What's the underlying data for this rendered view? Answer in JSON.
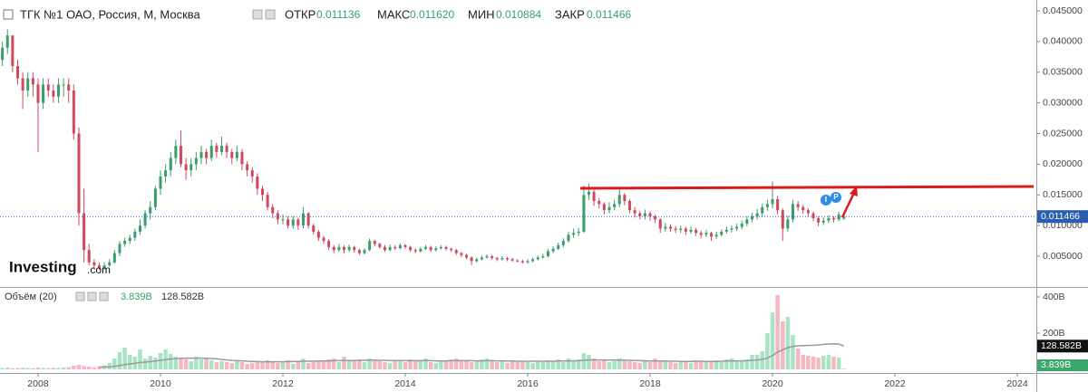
{
  "chart_data": {
    "type": "candlestick",
    "title": "ТГК №1 ОАО, Россия, М, Москва",
    "header": {
      "open": "ОТКР",
      "high": "МАКС",
      "low": "МИН",
      "close": "ЗАКР"
    },
    "header_values": {
      "open": "0.011136",
      "high": "0.011620",
      "low": "0.010884",
      "close": "0.011466"
    },
    "logo": "Investing",
    "logo_suffix": ".com",
    "event_markers": [
      "I",
      "P"
    ],
    "up_color": "#3a9e6b",
    "down_color": "#d2485f",
    "x": [
      2007.417,
      2007.5,
      2007.583,
      2007.667,
      2007.75,
      2007.833,
      2007.917,
      2008,
      2008.083,
      2008.167,
      2008.25,
      2008.333,
      2008.417,
      2008.5,
      2008.583,
      2008.667,
      2008.75,
      2008.833,
      2008.917,
      2009,
      2009.083,
      2009.167,
      2009.25,
      2009.333,
      2009.417,
      2009.5,
      2009.583,
      2009.667,
      2009.75,
      2009.833,
      2009.917,
      2010,
      2010.083,
      2010.167,
      2010.25,
      2010.333,
      2010.417,
      2010.5,
      2010.583,
      2010.667,
      2010.75,
      2010.833,
      2010.917,
      2011,
      2011.083,
      2011.167,
      2011.25,
      2011.333,
      2011.417,
      2011.5,
      2011.583,
      2011.667,
      2011.75,
      2011.833,
      2011.917,
      2012,
      2012.083,
      2012.167,
      2012.25,
      2012.333,
      2012.417,
      2012.5,
      2012.583,
      2012.667,
      2012.75,
      2012.833,
      2012.917,
      2013,
      2013.083,
      2013.167,
      2013.25,
      2013.333,
      2013.417,
      2013.5,
      2013.583,
      2013.667,
      2013.75,
      2013.833,
      2013.917,
      2014,
      2014.083,
      2014.167,
      2014.25,
      2014.333,
      2014.417,
      2014.5,
      2014.583,
      2014.667,
      2014.75,
      2014.833,
      2014.917,
      2015,
      2015.083,
      2015.167,
      2015.25,
      2015.333,
      2015.417,
      2015.5,
      2015.583,
      2015.667,
      2015.75,
      2015.833,
      2015.917,
      2016,
      2016.083,
      2016.167,
      2016.25,
      2016.333,
      2016.417,
      2016.5,
      2016.583,
      2016.667,
      2016.75,
      2016.833,
      2016.917,
      2017,
      2017.083,
      2017.167,
      2017.25,
      2017.333,
      2017.417,
      2017.5,
      2017.583,
      2017.667,
      2017.75,
      2017.833,
      2017.917,
      2018,
      2018.083,
      2018.167,
      2018.25,
      2018.333,
      2018.417,
      2018.5,
      2018.583,
      2018.667,
      2018.75,
      2018.833,
      2018.917,
      2019,
      2019.083,
      2019.167,
      2019.25,
      2019.333,
      2019.417,
      2019.5,
      2019.583,
      2019.667,
      2019.75,
      2019.833,
      2019.917,
      2020,
      2020.083,
      2020.167,
      2020.25,
      2020.333,
      2020.417,
      2020.5,
      2020.583,
      2020.667,
      2020.75,
      2020.833,
      2020.917,
      2021,
      2021.083,
      2021.167
    ],
    "open": [
      0.037,
      0.039,
      0.041,
      0.036,
      0.034,
      0.032,
      0.034,
      0.033,
      0.03,
      0.033,
      0.032,
      0.031,
      0.033,
      0.033,
      0.032,
      0.025,
      0.012,
      0.006,
      0.004,
      0.0035,
      0.003,
      0.0035,
      0.004,
      0.0055,
      0.007,
      0.0075,
      0.008,
      0.009,
      0.01,
      0.012,
      0.013,
      0.016,
      0.018,
      0.019,
      0.021,
      0.023,
      0.02,
      0.019,
      0.02,
      0.021,
      0.022,
      0.021,
      0.023,
      0.022,
      0.023,
      0.022,
      0.021,
      0.022,
      0.02,
      0.019,
      0.018,
      0.016,
      0.015,
      0.013,
      0.012,
      0.011,
      0.011,
      0.01,
      0.011,
      0.01,
      0.012,
      0.01,
      0.009,
      0.008,
      0.0075,
      0.0065,
      0.006,
      0.0065,
      0.006,
      0.0065,
      0.006,
      0.0055,
      0.006,
      0.0075,
      0.007,
      0.0065,
      0.006,
      0.0065,
      0.0063,
      0.0068,
      0.0065,
      0.006,
      0.0058,
      0.0062,
      0.0065,
      0.006,
      0.0063,
      0.0065,
      0.0062,
      0.006,
      0.0055,
      0.0052,
      0.0048,
      0.0042,
      0.0045,
      0.0048,
      0.005,
      0.0047,
      0.0045,
      0.0047,
      0.0045,
      0.0043,
      0.0042,
      0.004,
      0.0042,
      0.0045,
      0.0048,
      0.005,
      0.0058,
      0.0062,
      0.0068,
      0.0075,
      0.0085,
      0.0088,
      0.009,
      0.015,
      0.0155,
      0.014,
      0.0135,
      0.0125,
      0.013,
      0.0135,
      0.015,
      0.014,
      0.0125,
      0.012,
      0.0115,
      0.012,
      0.0115,
      0.011,
      0.0095,
      0.0098,
      0.0095,
      0.0093,
      0.0095,
      0.009,
      0.0093,
      0.0088,
      0.0085,
      0.0088,
      0.0082,
      0.0085,
      0.009,
      0.0093,
      0.0095,
      0.0098,
      0.0103,
      0.011,
      0.0115,
      0.012,
      0.013,
      0.0135,
      0.0143,
      0.0125,
      0.0095,
      0.011,
      0.0135,
      0.013,
      0.0125,
      0.012,
      0.0112,
      0.0105,
      0.0108,
      0.0112,
      0.011,
      0.011136
    ],
    "high": [
      0.04,
      0.042,
      0.041,
      0.037,
      0.035,
      0.035,
      0.035,
      0.034,
      0.034,
      0.034,
      0.033,
      0.034,
      0.034,
      0.034,
      0.033,
      0.026,
      0.016,
      0.007,
      0.0045,
      0.004,
      0.004,
      0.0045,
      0.006,
      0.0075,
      0.008,
      0.0085,
      0.0095,
      0.011,
      0.0125,
      0.014,
      0.0165,
      0.019,
      0.02,
      0.022,
      0.024,
      0.0255,
      0.021,
      0.021,
      0.022,
      0.023,
      0.0225,
      0.024,
      0.0235,
      0.0245,
      0.0235,
      0.0225,
      0.023,
      0.0225,
      0.0205,
      0.0195,
      0.0185,
      0.0165,
      0.0155,
      0.0135,
      0.0125,
      0.0118,
      0.0115,
      0.0115,
      0.0113,
      0.013,
      0.0122,
      0.0103,
      0.0093,
      0.0083,
      0.0078,
      0.0068,
      0.007,
      0.0068,
      0.0069,
      0.0067,
      0.0062,
      0.0063,
      0.0079,
      0.0077,
      0.0072,
      0.0068,
      0.0069,
      0.0068,
      0.0071,
      0.007,
      0.0067,
      0.0063,
      0.0065,
      0.0068,
      0.0067,
      0.0066,
      0.0068,
      0.0067,
      0.0064,
      0.0062,
      0.0057,
      0.0054,
      0.005,
      0.0048,
      0.0051,
      0.0053,
      0.0052,
      0.0049,
      0.005,
      0.0049,
      0.0047,
      0.0045,
      0.0044,
      0.0045,
      0.0048,
      0.0051,
      0.0054,
      0.0062,
      0.0066,
      0.0072,
      0.0079,
      0.009,
      0.0095,
      0.0096,
      0.0165,
      0.0168,
      0.0158,
      0.0145,
      0.0138,
      0.0138,
      0.0142,
      0.016,
      0.0153,
      0.0143,
      0.013,
      0.0124,
      0.0126,
      0.0123,
      0.0118,
      0.0112,
      0.0104,
      0.0102,
      0.0099,
      0.01,
      0.0098,
      0.0098,
      0.0096,
      0.0091,
      0.0093,
      0.009,
      0.009,
      0.0094,
      0.0098,
      0.01,
      0.0103,
      0.0108,
      0.0115,
      0.0121,
      0.0127,
      0.0136,
      0.0142,
      0.0172,
      0.0148,
      0.0128,
      0.0116,
      0.0142,
      0.014,
      0.0134,
      0.0128,
      0.0123,
      0.0115,
      0.0113,
      0.0117,
      0.0115,
      0.0122,
      0.01162
    ],
    "low": [
      0.036,
      0.038,
      0.035,
      0.033,
      0.029,
      0.031,
      0.031,
      0.022,
      0.029,
      0.031,
      0.03,
      0.03,
      0.031,
      0.03,
      0.024,
      0.01,
      0.004,
      0.0035,
      0.003,
      0.0028,
      0.0028,
      0.0033,
      0.0038,
      0.005,
      0.0065,
      0.007,
      0.0075,
      0.0085,
      0.0095,
      0.011,
      0.0125,
      0.015,
      0.017,
      0.018,
      0.02,
      0.0195,
      0.0175,
      0.018,
      0.019,
      0.02,
      0.02,
      0.0205,
      0.021,
      0.0215,
      0.021,
      0.02,
      0.0205,
      0.019,
      0.018,
      0.017,
      0.015,
      0.014,
      0.0125,
      0.0112,
      0.0102,
      0.0102,
      0.0095,
      0.0095,
      0.0093,
      0.0095,
      0.0095,
      0.0085,
      0.0075,
      0.007,
      0.006,
      0.0055,
      0.0057,
      0.0055,
      0.0057,
      0.0056,
      0.0052,
      0.0053,
      0.0058,
      0.0066,
      0.0062,
      0.0057,
      0.0058,
      0.006,
      0.0061,
      0.0062,
      0.0057,
      0.0055,
      0.0056,
      0.006,
      0.0057,
      0.0058,
      0.0061,
      0.0059,
      0.0057,
      0.0052,
      0.0048,
      0.0045,
      0.0036,
      0.004,
      0.0043,
      0.0046,
      0.0044,
      0.0042,
      0.0043,
      0.0042,
      0.0041,
      0.004,
      0.0038,
      0.0038,
      0.004,
      0.0043,
      0.0046,
      0.0048,
      0.0055,
      0.006,
      0.0065,
      0.0072,
      0.008,
      0.0083,
      0.0088,
      0.0142,
      0.0132,
      0.0128,
      0.0118,
      0.012,
      0.0125,
      0.013,
      0.0133,
      0.012,
      0.0113,
      0.011,
      0.011,
      0.0108,
      0.0104,
      0.0088,
      0.009,
      0.009,
      0.0088,
      0.0088,
      0.0085,
      0.0086,
      0.0083,
      0.0079,
      0.0081,
      0.0075,
      0.0078,
      0.0082,
      0.0087,
      0.0089,
      0.0091,
      0.0094,
      0.0099,
      0.0105,
      0.011,
      0.0114,
      0.0124,
      0.0128,
      0.0118,
      0.0075,
      0.009,
      0.0105,
      0.0124,
      0.0119,
      0.0114,
      0.0107,
      0.0099,
      0.0101,
      0.0104,
      0.0105,
      0.0107,
      0.010884
    ],
    "close": [
      0.039,
      0.041,
      0.036,
      0.034,
      0.032,
      0.034,
      0.033,
      0.03,
      0.033,
      0.032,
      0.031,
      0.033,
      0.033,
      0.032,
      0.025,
      0.012,
      0.006,
      0.004,
      0.0035,
      0.003,
      0.0035,
      0.004,
      0.0055,
      0.007,
      0.0075,
      0.008,
      0.009,
      0.01,
      0.012,
      0.013,
      0.016,
      0.018,
      0.019,
      0.021,
      0.023,
      0.02,
      0.019,
      0.02,
      0.021,
      0.022,
      0.021,
      0.023,
      0.022,
      0.023,
      0.022,
      0.021,
      0.022,
      0.02,
      0.019,
      0.018,
      0.016,
      0.015,
      0.013,
      0.012,
      0.011,
      0.011,
      0.01,
      0.011,
      0.01,
      0.012,
      0.01,
      0.009,
      0.008,
      0.0075,
      0.0065,
      0.006,
      0.0065,
      0.006,
      0.0065,
      0.006,
      0.0055,
      0.006,
      0.0075,
      0.007,
      0.0065,
      0.006,
      0.0065,
      0.0063,
      0.0068,
      0.0065,
      0.006,
      0.0058,
      0.0062,
      0.0065,
      0.006,
      0.0063,
      0.0065,
      0.0062,
      0.006,
      0.0055,
      0.0052,
      0.0048,
      0.0042,
      0.0045,
      0.0048,
      0.005,
      0.0047,
      0.0045,
      0.0047,
      0.0045,
      0.0043,
      0.0042,
      0.004,
      0.0042,
      0.0045,
      0.0048,
      0.005,
      0.0058,
      0.0062,
      0.0068,
      0.0075,
      0.0085,
      0.0088,
      0.009,
      0.015,
      0.0155,
      0.014,
      0.0135,
      0.0125,
      0.013,
      0.0135,
      0.015,
      0.014,
      0.0125,
      0.012,
      0.0115,
      0.012,
      0.0115,
      0.011,
      0.0095,
      0.0098,
      0.0095,
      0.0093,
      0.0095,
      0.009,
      0.0093,
      0.0088,
      0.0085,
      0.0088,
      0.0082,
      0.0085,
      0.009,
      0.0093,
      0.0095,
      0.0098,
      0.0103,
      0.011,
      0.0115,
      0.012,
      0.013,
      0.0135,
      0.0143,
      0.0125,
      0.0095,
      0.011,
      0.0135,
      0.013,
      0.0125,
      0.012,
      0.0112,
      0.0105,
      0.0108,
      0.0112,
      0.011,
      0.0118,
      0.011466
    ],
    "xlim": [
      2007.378,
      2024.311
    ],
    "xticks": [
      2008,
      2010,
      2012,
      2014,
      2016,
      2018,
      2020,
      2022,
      2024
    ],
    "ylim": [
      0.00013,
      0.04677
    ],
    "yticks": [
      {
        "value": 0.045,
        "label": "0.045000"
      },
      {
        "value": 0.04,
        "label": "0.040000"
      },
      {
        "value": 0.035,
        "label": "0.035000"
      },
      {
        "value": 0.03,
        "label": "0.030000"
      },
      {
        "value": 0.025,
        "label": "0.025000"
      },
      {
        "value": 0.02,
        "label": "0.020000"
      },
      {
        "value": 0.015,
        "label": "0.015000"
      },
      {
        "value": 0.01,
        "label": "0.010000"
      },
      {
        "value": 0.005,
        "label": "0.005000"
      }
    ],
    "volume": {
      "name": "Объём (20)",
      "up_color": "#a9e3c6",
      "down_color": "#f5b8c2",
      "ma_color": "#9a9a9a",
      "ylim": [
        0,
        450
      ],
      "yticks": [
        {
          "value": 400,
          "label": "400B"
        },
        {
          "value": 200,
          "label": "200B"
        }
      ],
      "last_label": "3.839B",
      "ma_last_label": "128.582B",
      "values": [
        8,
        10,
        6,
        7,
        9,
        8,
        6,
        10,
        8,
        7,
        9,
        8,
        10,
        12,
        20,
        25,
        18,
        15,
        12,
        18,
        22,
        35,
        60,
        95,
        120,
        80,
        70,
        110,
        60,
        75,
        65,
        90,
        110,
        85,
        70,
        60,
        55,
        45,
        70,
        55,
        60,
        50,
        40,
        45,
        40,
        35,
        50,
        40,
        30,
        35,
        45,
        40,
        50,
        45,
        35,
        40,
        50,
        30,
        45,
        60,
        35,
        40,
        50,
        45,
        55,
        60,
        40,
        70,
        50,
        45,
        55,
        40,
        60,
        50,
        45,
        40,
        35,
        45,
        50,
        40,
        55,
        50,
        45,
        60,
        40,
        35,
        50,
        45,
        55,
        60,
        45,
        50,
        40,
        45,
        55,
        60,
        45,
        40,
        50,
        35,
        45,
        40,
        45,
        40,
        35,
        45,
        40,
        50,
        45,
        55,
        40,
        60,
        50,
        55,
        90,
        80,
        60,
        45,
        50,
        40,
        45,
        60,
        50,
        45,
        40,
        35,
        45,
        40,
        60,
        45,
        50,
        40,
        35,
        45,
        40,
        35,
        50,
        45,
        40,
        45,
        50,
        40,
        55,
        60,
        45,
        50,
        55,
        80,
        80,
        100,
        200,
        315,
        410,
        265,
        290,
        190,
        115,
        80,
        75,
        70,
        65,
        75,
        80,
        70,
        65,
        3.839
      ],
      "ma_values": [
        null,
        null,
        null,
        null,
        null,
        null,
        null,
        null,
        null,
        null,
        null,
        null,
        null,
        null,
        null,
        null,
        null,
        null,
        null,
        12,
        13,
        14,
        17,
        21,
        26,
        30,
        33,
        38,
        40,
        43,
        46,
        50,
        54,
        57,
        59,
        61,
        62,
        62,
        62,
        62,
        61,
        60,
        58,
        55,
        52,
        49,
        48,
        47,
        45,
        44,
        43,
        42,
        42,
        42,
        42,
        42,
        43,
        43,
        44,
        45,
        45,
        45,
        46,
        46,
        47,
        48,
        48,
        49,
        49,
        49,
        50,
        50,
        51,
        51,
        50,
        50,
        49,
        49,
        49,
        48,
        48,
        48,
        48,
        49,
        48,
        47,
        47,
        47,
        48,
        48,
        48,
        48,
        48,
        47,
        47,
        48,
        48,
        47,
        47,
        46,
        46,
        45,
        45,
        45,
        45,
        45,
        45,
        45,
        45,
        46,
        46,
        47,
        47,
        48,
        50,
        52,
        52,
        52,
        52,
        51,
        51,
        51,
        51,
        50,
        49,
        48,
        47,
        46,
        46,
        46,
        46,
        45,
        45,
        44,
        44,
        44,
        45,
        45,
        44,
        44,
        44,
        45,
        46,
        47,
        47,
        47,
        48,
        50,
        52,
        55,
        62,
        76,
        96,
        108,
        120,
        126,
        130,
        131,
        132,
        133,
        135,
        138,
        140,
        141,
        140,
        128.582
      ]
    }
  }
}
